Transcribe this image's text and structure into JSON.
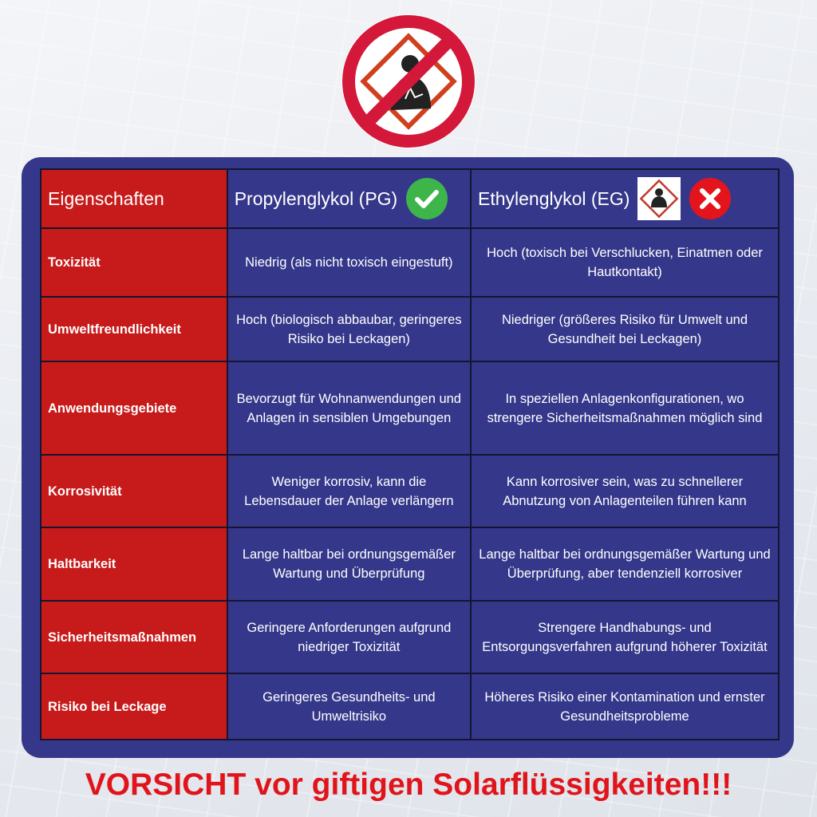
{
  "footer": "VORSICHT vor giftigen Solarflüssigkeiten!!!",
  "colors": {
    "panel": "#35388a",
    "property_column": "#c71a1a",
    "footer_text": "#e0151b",
    "check": "#3db54a",
    "cross": "#e3141c"
  },
  "icons": {
    "top": "prohibited-health-hazard-icon",
    "pg": "green-check-icon",
    "eg": [
      "ghs-health-hazard-icon",
      "red-x-icon"
    ]
  },
  "header": {
    "property": "Eigenschaften",
    "pg": "Propylenglykol (PG)",
    "eg": "Ethylenglykol (EG)"
  },
  "rows": [
    {
      "property": "Toxizität",
      "pg": "Niedrig (als nicht toxisch eingestuft)",
      "eg": "Hoch (toxisch bei Verschlucken, Einatmen oder Hautkontakt)"
    },
    {
      "property": "Umweltfreundlichkeit",
      "pg": "Hoch (biologisch abbaubar, geringeres Risiko bei Leckagen)",
      "eg": "Niedriger (größeres Risiko für Umwelt und Gesundheit bei Leckagen)"
    },
    {
      "property": "Anwendungsgebiete",
      "pg": "Bevorzugt für Wohnanwendungen und Anlagen in sensiblen Umgebungen",
      "eg": "In speziellen Anlagenkonfigurationen, wo strengere Sicherheitsmaßnahmen möglich sind"
    },
    {
      "property": "Korrosivität",
      "pg": "Weniger korrosiv, kann die Lebensdauer der Anlage verlängern",
      "eg": "Kann korrosiver sein, was zu schnellerer Abnutzung von Anlagenteilen führen kann"
    },
    {
      "property": "Haltbarkeit",
      "pg": "Lange haltbar bei ordnungsgemäßer Wartung und Überprüfung",
      "eg": "Lange haltbar bei ordnungsgemäßer Wartung und Überprüfung, aber tendenziell korrosiver"
    },
    {
      "property": "Sicherheitsmaßnahmen",
      "pg": "Geringere Anforderungen aufgrund niedriger Toxizität",
      "eg": "Strengere Handhabungs- und Entsorgungsverfahren aufgrund höherer Toxizität"
    },
    {
      "property": "Risiko bei Leckage",
      "pg": "Geringeres Gesundheits- und Umweltrisiko",
      "eg": "Höheres Risiko einer Kontamination und ernster Gesundheitsprobleme"
    }
  ]
}
